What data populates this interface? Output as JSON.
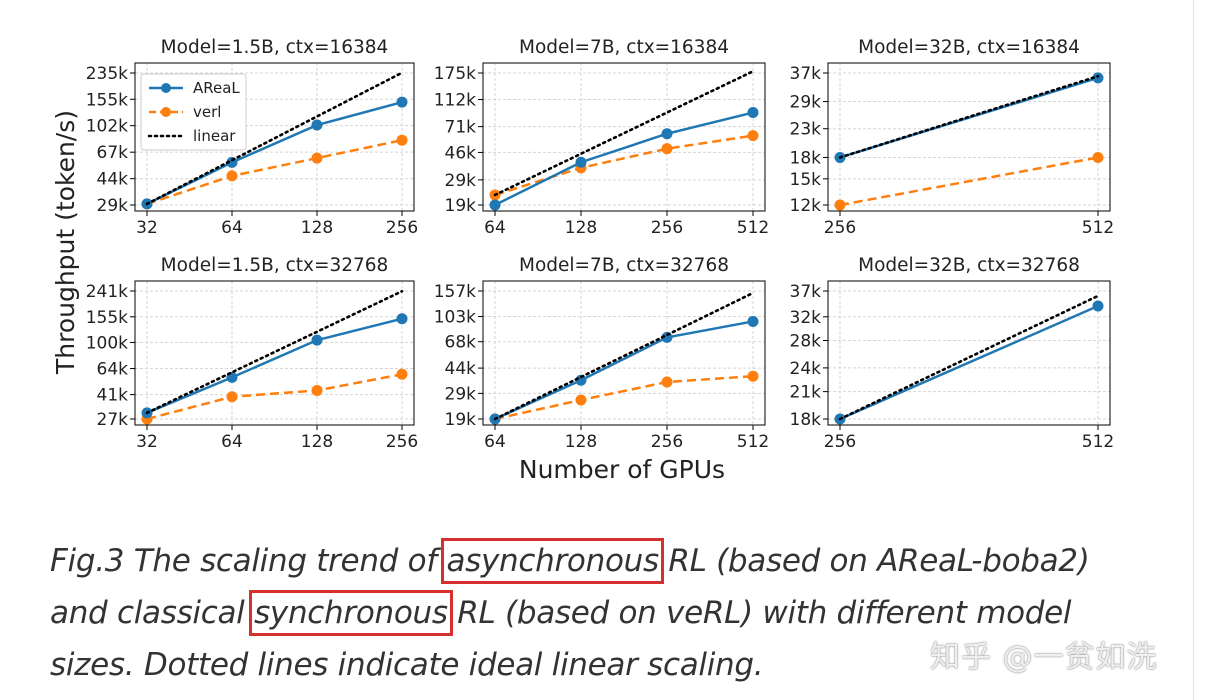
{
  "figure": {
    "ylabel": "Throughput (token/s)",
    "xlabel": "Number of GPUs",
    "legend": {
      "placement": "top-left of first panel",
      "entries": [
        {
          "label": "AReaL",
          "color": "#1f77b4",
          "style": "solid",
          "marker": "circle"
        },
        {
          "label": "verl",
          "color": "#ff7f0e",
          "style": "dashed",
          "marker": "circle"
        },
        {
          "label": "linear",
          "color": "#000000",
          "style": "dotted",
          "marker": "none"
        }
      ]
    }
  },
  "chart_data": [
    {
      "type": "line",
      "title": "Model=1.5B, ctx=16384",
      "x_scale": "log2",
      "y_scale": "log",
      "x": [
        32,
        64,
        128,
        256
      ],
      "xticks": [
        "32",
        "64",
        "128",
        "256"
      ],
      "yticks": [
        29000,
        44000,
        67000,
        102000,
        155000,
        235000
      ],
      "ytick_labels": [
        "29k",
        "44k",
        "67k",
        "102k",
        "155k",
        "235k"
      ],
      "ylim": [
        27000,
        300000
      ],
      "grid": true,
      "series": [
        {
          "name": "AReaL",
          "values": [
            29500,
            57000,
            103000,
            148000
          ]
        },
        {
          "name": "verl",
          "values": [
            29500,
            46000,
            61000,
            81000
          ]
        },
        {
          "name": "linear",
          "values": [
            29500,
            59000,
            118000,
            236000
          ]
        }
      ]
    },
    {
      "type": "line",
      "title": "Model=7B, ctx=16384",
      "x_scale": "log2",
      "y_scale": "log",
      "x": [
        64,
        128,
        256,
        512
      ],
      "xticks": [
        "64",
        "128",
        "256",
        "512"
      ],
      "yticks": [
        19000,
        29000,
        46000,
        71000,
        112000,
        175000
      ],
      "ytick_labels": [
        "19k",
        "29k",
        "46k",
        "71k",
        "112k",
        "175k"
      ],
      "ylim": [
        18000,
        220000
      ],
      "grid": true,
      "series": [
        {
          "name": "AReaL",
          "values": [
            19000,
            39000,
            63000,
            90000
          ]
        },
        {
          "name": "verl",
          "values": [
            22500,
            35500,
            49000,
            61000
          ]
        },
        {
          "name": "linear",
          "values": [
            22500,
            45000,
            90000,
            180000
          ]
        }
      ]
    },
    {
      "type": "line",
      "title": "Model=32B, ctx=16384",
      "x_scale": "log2",
      "y_scale": "log",
      "x": [
        256,
        512
      ],
      "xticks": [
        "256",
        "512"
      ],
      "yticks": [
        12000,
        15000,
        18000,
        23000,
        29000,
        37000
      ],
      "ytick_labels": [
        "12k",
        "15k",
        "18k",
        "23k",
        "29k",
        "37k"
      ],
      "ylim": [
        11700,
        40000
      ],
      "grid": true,
      "series": [
        {
          "name": "AReaL",
          "values": [
            18000,
            35500
          ]
        },
        {
          "name": "verl",
          "values": [
            12000,
            18000
          ]
        },
        {
          "name": "linear",
          "values": [
            18000,
            36000
          ]
        }
      ]
    },
    {
      "type": "line",
      "title": "Model=1.5B, ctx=32768",
      "x_scale": "log2",
      "y_scale": "log",
      "x": [
        32,
        64,
        128,
        256
      ],
      "xticks": [
        "32",
        "64",
        "128",
        "256"
      ],
      "yticks": [
        27000,
        41000,
        64000,
        100000,
        155000,
        241000
      ],
      "ytick_labels": [
        "27k",
        "41k",
        "64k",
        "100k",
        "155k",
        "241k"
      ],
      "ylim": [
        25000,
        300000
      ],
      "grid": true,
      "series": [
        {
          "name": "AReaL",
          "values": [
            30000,
            55000,
            104000,
            150000
          ]
        },
        {
          "name": "verl",
          "values": [
            27000,
            39500,
            44000,
            58000
          ]
        },
        {
          "name": "linear",
          "values": [
            30000,
            60000,
            120000,
            240000
          ]
        }
      ]
    },
    {
      "type": "line",
      "title": "Model=7B, ctx=32768",
      "x_scale": "log2",
      "y_scale": "log",
      "x": [
        64,
        128,
        256,
        512
      ],
      "xticks": [
        "64",
        "128",
        "256",
        "512"
      ],
      "yticks": [
        19000,
        29000,
        44000,
        68000,
        103000,
        157000
      ],
      "ytick_labels": [
        "19k",
        "29k",
        "44k",
        "68k",
        "103k",
        "157k"
      ],
      "ylim": [
        18000,
        190000
      ],
      "grid": true,
      "series": [
        {
          "name": "AReaL",
          "values": [
            19000,
            36000,
            73000,
            95000
          ]
        },
        {
          "name": "verl",
          "values": [
            19000,
            26000,
            35000,
            38500
          ]
        },
        {
          "name": "linear",
          "values": [
            19000,
            38000,
            76000,
            152000
          ]
        }
      ]
    },
    {
      "type": "line",
      "title": "Model=32B, ctx=32768",
      "x_scale": "log2",
      "y_scale": "log",
      "x": [
        256,
        512
      ],
      "xticks": [
        "256",
        "512"
      ],
      "yticks": [
        18000,
        21000,
        24000,
        28000,
        32000,
        37000
      ],
      "ytick_labels": [
        "18k",
        "21k",
        "24k",
        "28k",
        "32k",
        "37k"
      ],
      "ylim": [
        17500,
        38500
      ],
      "grid": true,
      "series": [
        {
          "name": "AReaL",
          "values": [
            18000,
            34000
          ]
        },
        {
          "name": "linear",
          "values": [
            18000,
            36000
          ]
        }
      ]
    }
  ],
  "caption": {
    "before_1": "Fig.3 The scaling trend of ",
    "highlight_1": "asynchronous",
    "middle": " RL (based on AReaL-boba2) and classical ",
    "highlight_2": "synchronous",
    "after": " RL (based on veRL) with different model sizes. Dotted lines indicate ideal linear scaling."
  },
  "watermark": "知乎 @一贫如洗"
}
